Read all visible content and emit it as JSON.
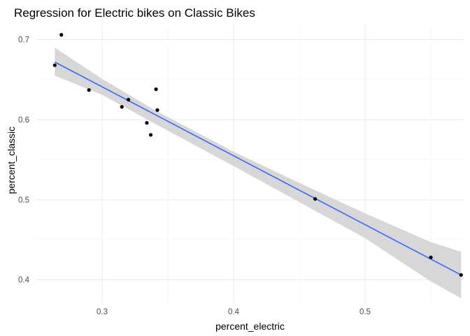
{
  "chart_data": {
    "type": "scatter",
    "title": "Regression for Electric bikes on Classic Bikes",
    "xlabel": "percent_electric",
    "ylabel": "percent_classic",
    "xlim": [
      0.25,
      0.575
    ],
    "ylim": [
      0.37,
      0.718
    ],
    "x_ticks": [
      0.3,
      0.4,
      0.5
    ],
    "x_tick_labels": [
      "0.3",
      "0.4",
      "0.5"
    ],
    "y_ticks": [
      0.4,
      0.5,
      0.6,
      0.7
    ],
    "y_tick_labels": [
      "0.4",
      "0.5",
      "0.6",
      "0.7"
    ],
    "grid": true,
    "points": [
      {
        "x": 0.264,
        "y": 0.668
      },
      {
        "x": 0.269,
        "y": 0.706
      },
      {
        "x": 0.29,
        "y": 0.637
      },
      {
        "x": 0.315,
        "y": 0.616
      },
      {
        "x": 0.32,
        "y": 0.625
      },
      {
        "x": 0.334,
        "y": 0.596
      },
      {
        "x": 0.337,
        "y": 0.581
      },
      {
        "x": 0.341,
        "y": 0.638
      },
      {
        "x": 0.342,
        "y": 0.612
      },
      {
        "x": 0.462,
        "y": 0.501
      },
      {
        "x": 0.55,
        "y": 0.428
      },
      {
        "x": 0.573,
        "y": 0.406
      }
    ],
    "fit_line": {
      "x": [
        0.264,
        0.573
      ],
      "y": [
        0.672,
        0.406
      ]
    },
    "confidence_band": {
      "x": [
        0.264,
        0.3,
        0.34,
        0.4,
        0.45,
        0.5,
        0.55,
        0.573
      ],
      "upper": [
        0.69,
        0.651,
        0.612,
        0.56,
        0.521,
        0.483,
        0.447,
        0.435
      ],
      "lower": [
        0.655,
        0.631,
        0.595,
        0.542,
        0.497,
        0.452,
        0.398,
        0.377
      ]
    },
    "colors": {
      "point": "#000000",
      "fit_line": "#3366FF",
      "band": "#d3d3d3",
      "grid_major": "#ebebeb",
      "grid_minor": "#f5f5f5"
    }
  }
}
